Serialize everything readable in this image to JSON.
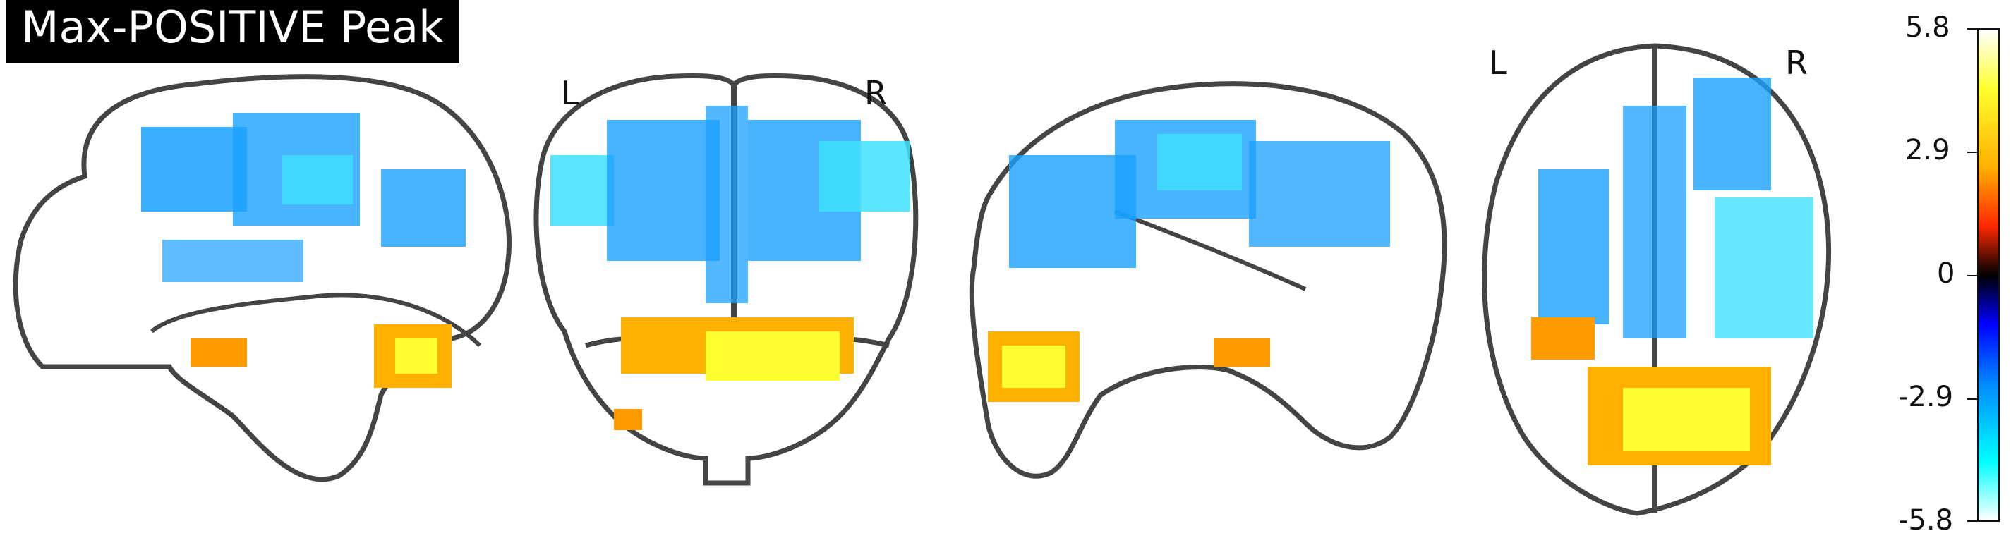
{
  "title": "Max-POSITIVE Peak",
  "labels": {
    "coronal_left": "L",
    "coronal_right": "R",
    "axial_left": "L",
    "axial_right": "R"
  },
  "colorbar": {
    "ticks": [
      "5.8",
      "2.9",
      "0",
      "-2.9",
      "-5.8"
    ],
    "min": -5.8,
    "max": 5.8
  },
  "colors": {
    "positive": "#ffb000",
    "positive_peak": "#ffff30",
    "negative": "#1aa0ff",
    "negative_light": "#40e0ff",
    "outline": "#444444"
  }
}
